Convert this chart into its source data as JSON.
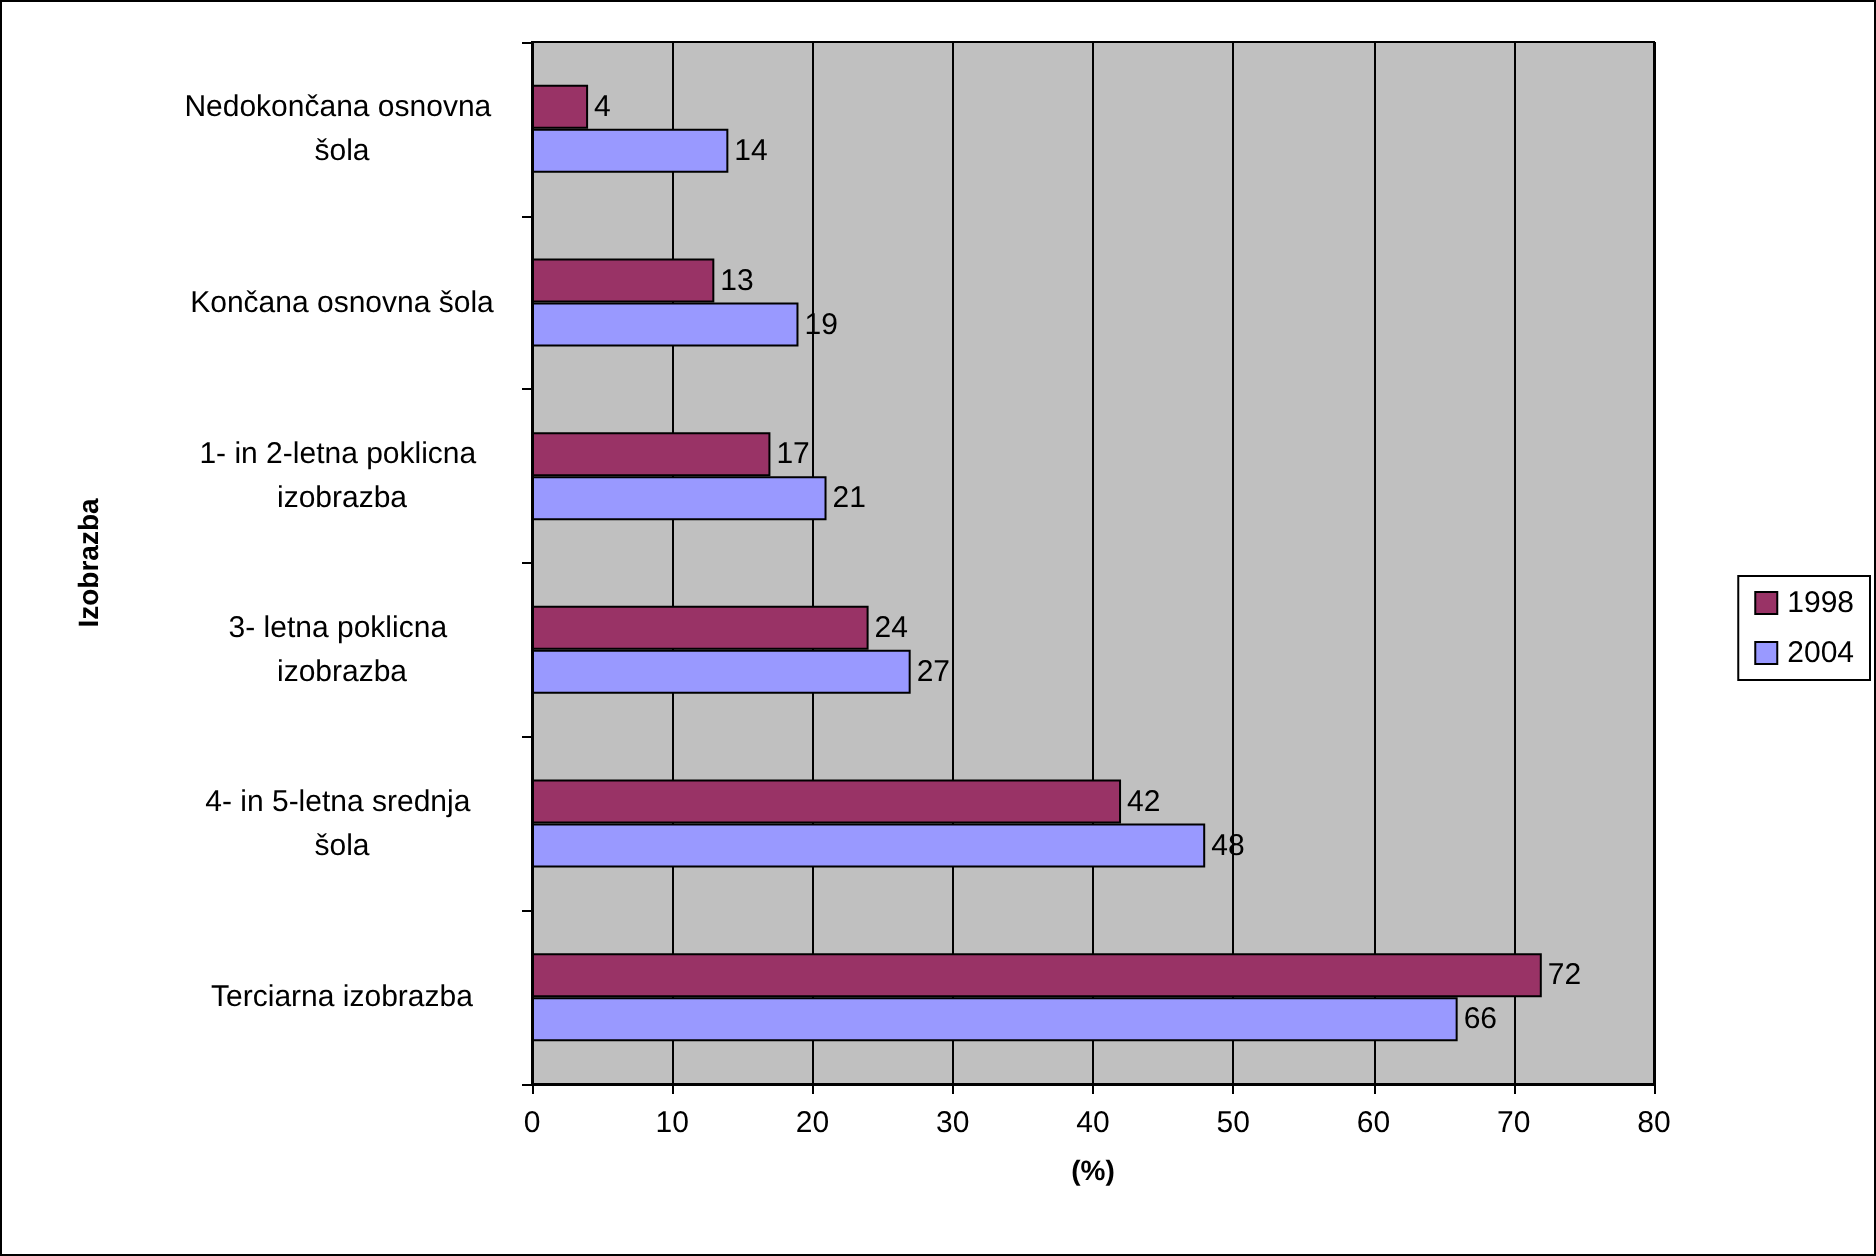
{
  "chart_data": {
    "type": "bar",
    "orientation": "horizontal",
    "ylabel": "Izobrazba",
    "xlabel": "(%)",
    "categories": [
      "Nedokončana osnovna šola",
      "Končana osnovna šola",
      "1- in 2-letna poklicna izobrazba",
      "3- letna poklicna izobrazba",
      "4- in 5-letna srednja šola",
      "Terciarna izobrazba"
    ],
    "series": [
      {
        "name": "1998",
        "color": "#993366",
        "values": [
          4,
          13,
          17,
          24,
          42,
          72
        ]
      },
      {
        "name": "2004",
        "color": "#9999ff",
        "values": [
          14,
          19,
          21,
          27,
          48,
          66
        ]
      }
    ],
    "xlim": [
      0,
      80
    ],
    "xticks": [
      0,
      10,
      20,
      30,
      40,
      50,
      60,
      70,
      80
    ],
    "grid": "x",
    "legend": "right",
    "data_labels": true
  }
}
